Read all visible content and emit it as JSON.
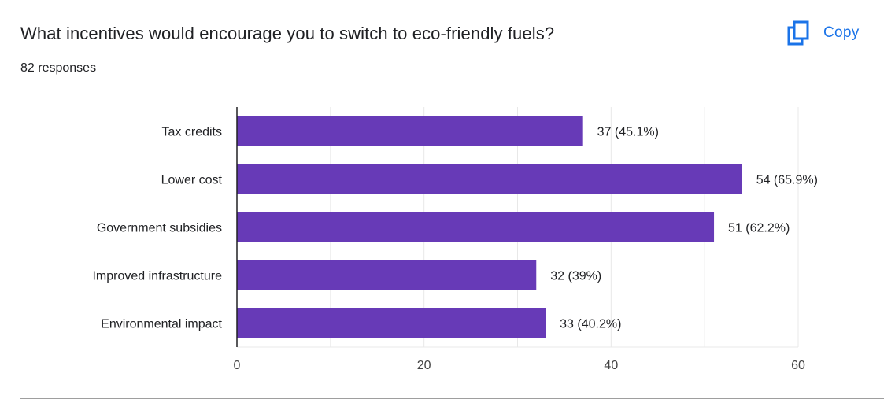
{
  "header": {
    "question": "What incentives would encourage you to switch to eco-friendly fuels?",
    "response_count": "82 responses",
    "copy_label": "Copy",
    "copy_icon": "copy-icon"
  },
  "colors": {
    "bar": "#673ab7",
    "accent": "#1a73e8",
    "text": "#202124",
    "grid": "#e8e8e8"
  },
  "chart_data": {
    "type": "bar",
    "orientation": "horizontal",
    "categories": [
      "Tax credits",
      "Lower cost",
      "Government subsidies",
      "Improved infrastructure",
      "Environmental impact"
    ],
    "values": [
      37,
      54,
      51,
      32,
      33
    ],
    "data_labels": [
      "37 (45.1%)",
      "54 (65.9%)",
      "51 (62.2%)",
      "32 (39%)",
      "33 (40.2%)"
    ],
    "xlim": [
      0,
      60
    ],
    "x_ticks": [
      0,
      20,
      40,
      60
    ],
    "grid": true,
    "title": "",
    "xlabel": "",
    "ylabel": ""
  }
}
